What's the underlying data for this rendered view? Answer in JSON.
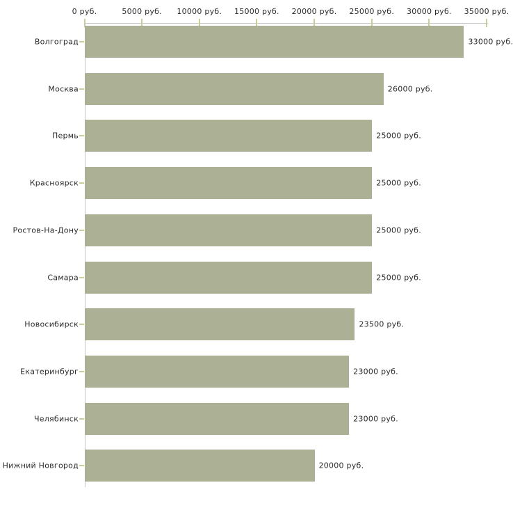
{
  "chart_data": {
    "type": "bar",
    "orientation": "horizontal",
    "categories": [
      "Волгоград",
      "Москва",
      "Пермь",
      "Красноярск",
      "Ростов-На-Дону",
      "Самара",
      "Новосибирск",
      "Екатеринбург",
      "Челябинск",
      "Нижний Новгород"
    ],
    "values": [
      33000,
      26000,
      25000,
      25000,
      25000,
      25000,
      23500,
      23000,
      23000,
      20000
    ],
    "value_labels": [
      "33000 руб.",
      "26000 руб.",
      "25000 руб.",
      "25000 руб.",
      "25000 руб.",
      "25000 руб.",
      "23500 руб.",
      "23000 руб.",
      "23000 руб.",
      "20000 руб."
    ],
    "x_axis": {
      "min": 0,
      "max": 35000,
      "step": 5000,
      "position": "top",
      "tick_labels": [
        "0 руб.",
        "5000 руб.",
        "10000 руб.",
        "15000 руб.",
        "20000 руб.",
        "25000 руб.",
        "30000 руб.",
        "35000 руб."
      ]
    },
    "grid": false,
    "legend": false,
    "colors": {
      "bar": "#acb196",
      "axis_line": "#c6c6c6",
      "tick": "#cccc99",
      "text": "#2b2b2b",
      "background": "#ffffff"
    }
  }
}
